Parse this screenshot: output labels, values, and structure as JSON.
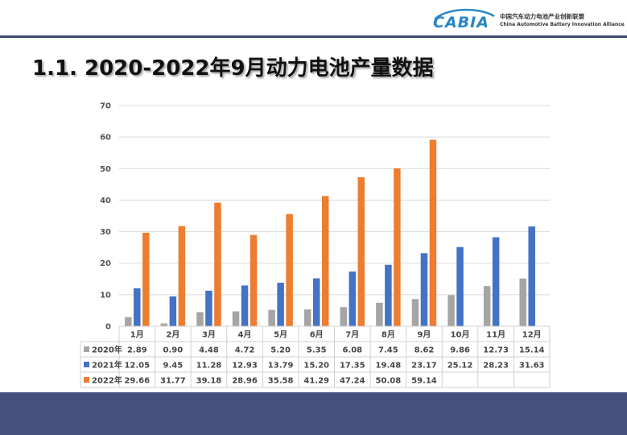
{
  "header": {
    "logo_word": "CABIA",
    "org_name_cn": "中国汽车动力电池产业创新联盟",
    "org_name_en": "China Automotive Battery Innovation Alliance",
    "accent_color": "#3b4a78",
    "logo_color": "#2a87c4"
  },
  "page": {
    "title": "1.1. 2020-2022年9月动力电池产量数据"
  },
  "footer": {
    "color": "#45507f"
  },
  "chart_data": {
    "type": "bar",
    "title": "",
    "xlabel": "",
    "ylabel": "",
    "ylim": [
      0,
      70
    ],
    "yticks": [
      0,
      10,
      20,
      30,
      40,
      50,
      60,
      70
    ],
    "grid": true,
    "categories": [
      "1月",
      "2月",
      "3月",
      "4月",
      "5月",
      "6月",
      "7月",
      "8月",
      "9月",
      "10月",
      "11月",
      "12月"
    ],
    "series": [
      {
        "name": "2020年",
        "color": "#a5a5a5",
        "values": [
          2.89,
          0.9,
          4.48,
          4.72,
          5.2,
          5.35,
          6.08,
          7.45,
          8.62,
          9.86,
          12.73,
          15.14
        ],
        "labels": [
          "2.89",
          "0.90",
          "4.48",
          "4.72",
          "5.20",
          "5.35",
          "6.08",
          "7.45",
          "8.62",
          "9.86",
          "12.73",
          "15.14"
        ]
      },
      {
        "name": "2021年",
        "color": "#4472c4",
        "values": [
          12.05,
          9.45,
          11.28,
          12.93,
          13.79,
          15.2,
          17.35,
          19.48,
          23.17,
          25.12,
          28.23,
          31.63
        ],
        "labels": [
          "12.05",
          "9.45",
          "11.28",
          "12.93",
          "13.79",
          "15.20",
          "17.35",
          "19.48",
          "23.17",
          "25.12",
          "28.23",
          "31.63"
        ]
      },
      {
        "name": "2022年",
        "color": "#ed7d31",
        "values": [
          29.66,
          31.77,
          39.18,
          28.96,
          35.58,
          41.29,
          47.24,
          50.08,
          59.14,
          null,
          null,
          null
        ],
        "labels": [
          "29.66",
          "31.77",
          "39.18",
          "28.96",
          "35.58",
          "41.29",
          "47.24",
          "50.08",
          "59.14",
          "",
          "",
          ""
        ]
      }
    ]
  }
}
